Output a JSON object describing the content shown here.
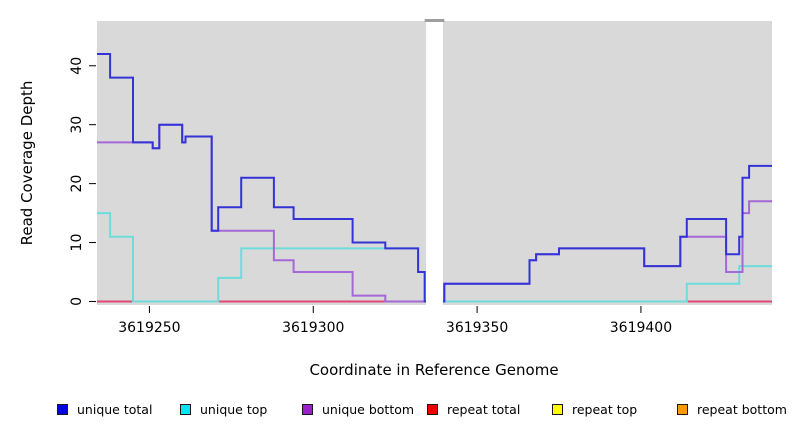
{
  "figure": {
    "ylabel": "Read Coverage Depth",
    "xlabel": "Coordinate in Reference Genome"
  },
  "chart_data": {
    "type": "line",
    "subtype": "step-post-coverage-plot",
    "title": "",
    "xlabel": "Coordinate in Reference Genome",
    "ylabel": "Read Coverage Depth",
    "xlim": [
      3619234,
      3619440
    ],
    "ylim": [
      -0.6,
      47.6
    ],
    "xticks": [
      3619250,
      3619300,
      3619350,
      3619400
    ],
    "yticks": [
      0,
      10,
      20,
      30,
      40
    ],
    "grid": false,
    "panel_bg": "#d9d9d9",
    "gap_region": {
      "x_start": 3619334,
      "x_end": 3619340,
      "fill": "#ffffff",
      "cap_color": "#9e9e9e"
    },
    "legend_position": "bottom",
    "series": [
      {
        "name": "unique-total",
        "label": "unique total",
        "color": "#3434d6",
        "swatch_color": "#0505dd",
        "z": 6,
        "points": [
          [
            3619234,
            42
          ],
          [
            3619238,
            38
          ],
          [
            3619245,
            27
          ],
          [
            3619251,
            26
          ],
          [
            3619253,
            30
          ],
          [
            3619260,
            27
          ],
          [
            3619261,
            28
          ],
          [
            3619269,
            12
          ],
          [
            3619271,
            16
          ],
          [
            3619278,
            21
          ],
          [
            3619288,
            16
          ],
          [
            3619294,
            14
          ],
          [
            3619312,
            10
          ],
          [
            3619322,
            9
          ],
          [
            3619332,
            5
          ],
          [
            3619334,
            0
          ],
          [
            3619340,
            3
          ],
          [
            3619366,
            7
          ],
          [
            3619368,
            8
          ],
          [
            3619375,
            9
          ],
          [
            3619401,
            6
          ],
          [
            3619412,
            11
          ],
          [
            3619414,
            14
          ],
          [
            3619426,
            8
          ],
          [
            3619430,
            11
          ],
          [
            3619431,
            21
          ],
          [
            3619433,
            23
          ]
        ]
      },
      {
        "name": "unique-top",
        "label": "unique top",
        "color": "#6fdcdc",
        "swatch_color": "#00e5ee",
        "z": 4,
        "points": [
          [
            3619234,
            15
          ],
          [
            3619238,
            11
          ],
          [
            3619245,
            0
          ],
          [
            3619271,
            4
          ],
          [
            3619278,
            9
          ],
          [
            3619332,
            5
          ],
          [
            3619334,
            0
          ],
          [
            3619414,
            3
          ],
          [
            3619430,
            6
          ]
        ]
      },
      {
        "name": "unique-bottom",
        "label": "unique bottom",
        "color": "#a468d8",
        "swatch_color": "#9a20cb",
        "z": 5,
        "points": [
          [
            3619234,
            27
          ],
          [
            3619251,
            26
          ],
          [
            3619253,
            30
          ],
          [
            3619260,
            27
          ],
          [
            3619261,
            28
          ],
          [
            3619269,
            12
          ],
          [
            3619288,
            7
          ],
          [
            3619294,
            5
          ],
          [
            3619312,
            1
          ],
          [
            3619322,
            0
          ],
          [
            3619340,
            3
          ],
          [
            3619366,
            7
          ],
          [
            3619368,
            8
          ],
          [
            3619375,
            9
          ],
          [
            3619401,
            6
          ],
          [
            3619412,
            11
          ],
          [
            3619426,
            5
          ],
          [
            3619431,
            15
          ],
          [
            3619433,
            17
          ]
        ]
      },
      {
        "name": "repeat-total",
        "label": "repeat total",
        "color": "#e04878",
        "swatch_color": "#ee0000",
        "z": 3,
        "points": [
          [
            3619234,
            0
          ]
        ]
      },
      {
        "name": "repeat-top",
        "label": "repeat top",
        "color": "#ffff00",
        "swatch_color": "#ffff00",
        "z": 1,
        "points": [
          [
            3619234,
            0
          ]
        ]
      },
      {
        "name": "repeat-bottom",
        "label": "repeat bottom",
        "color": "#ff9d26",
        "swatch_color": "#ff9900",
        "z": 2,
        "points": [
          [
            3619234,
            0
          ]
        ]
      }
    ]
  },
  "legend": {
    "items": [
      {
        "label": "unique total"
      },
      {
        "label": "unique top"
      },
      {
        "label": "unique bottom"
      },
      {
        "label": "repeat total"
      },
      {
        "label": "repeat top"
      },
      {
        "label": "repeat bottom"
      }
    ]
  }
}
